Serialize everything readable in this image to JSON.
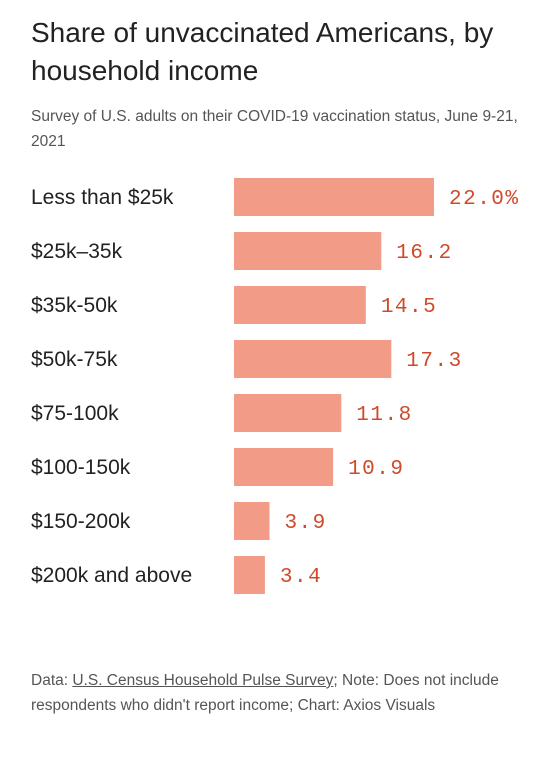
{
  "title": "Share of unvaccinated Americans, by household income",
  "subtitle": "Survey of U.S. adults on their COVID-19 vaccination status, June 9-21, 2021",
  "footer": {
    "prefix": "Data: ",
    "source_link": "U.S. Census Household Pulse Survey",
    "rest": "; Note: Does not include respondents who didn't report income; Chart: Axios Visuals"
  },
  "colors": {
    "bar": "#f29c87",
    "value_label": "#cf4a2a",
    "text": "#222222",
    "muted": "#555555"
  },
  "chart_data": {
    "type": "bar",
    "orientation": "horizontal",
    "categories": [
      "Less than $25k",
      "$25k–35k",
      "$35k-50k",
      "$50k-75k",
      "$75-100k",
      "$100-150k",
      "$150-200k",
      "$200k and above"
    ],
    "values": [
      22.0,
      16.2,
      14.5,
      17.3,
      11.8,
      10.9,
      3.9,
      3.4
    ],
    "value_labels": [
      "22.0%",
      "16.2",
      "14.5",
      "17.3",
      "11.8",
      "10.9",
      "3.9",
      "3.4"
    ],
    "xlim": [
      0,
      22
    ],
    "grid": false,
    "legend": "none"
  }
}
